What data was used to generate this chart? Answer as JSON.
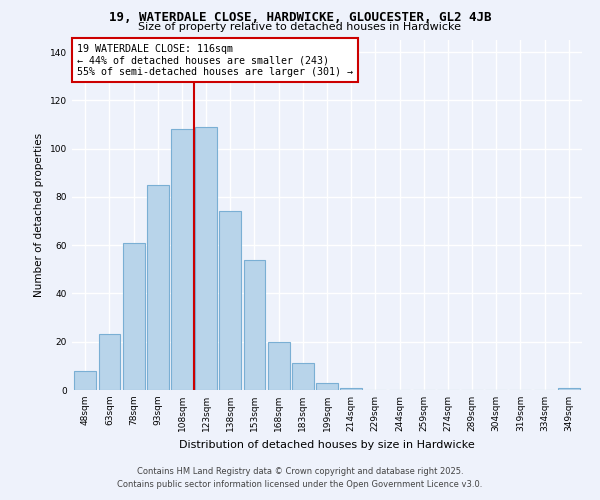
{
  "title": "19, WATERDALE CLOSE, HARDWICKE, GLOUCESTER, GL2 4JB",
  "subtitle": "Size of property relative to detached houses in Hardwicke",
  "xlabel": "Distribution of detached houses by size in Hardwicke",
  "ylabel": "Number of detached properties",
  "categories": [
    "48sqm",
    "63sqm",
    "78sqm",
    "93sqm",
    "108sqm",
    "123sqm",
    "138sqm",
    "153sqm",
    "168sqm",
    "183sqm",
    "199sqm",
    "214sqm",
    "229sqm",
    "244sqm",
    "259sqm",
    "274sqm",
    "289sqm",
    "304sqm",
    "319sqm",
    "334sqm",
    "349sqm"
  ],
  "values": [
    8,
    23,
    61,
    85,
    108,
    109,
    74,
    54,
    20,
    11,
    3,
    1,
    0,
    0,
    0,
    0,
    0,
    0,
    0,
    0,
    1
  ],
  "bar_color": "#b8d4ea",
  "bar_edge_color": "#7aafd4",
  "vline_x_index": 4.5,
  "vline_color": "#cc0000",
  "annotation_lines": [
    "19 WATERDALE CLOSE: 116sqm",
    "← 44% of detached houses are smaller (243)",
    "55% of semi-detached houses are larger (301) →"
  ],
  "ylim": [
    0,
    145
  ],
  "yticks": [
    0,
    20,
    40,
    60,
    80,
    100,
    120,
    140
  ],
  "background_color": "#eef2fb",
  "grid_color": "#ffffff",
  "footer_line1": "Contains HM Land Registry data © Crown copyright and database right 2025.",
  "footer_line2": "Contains public sector information licensed under the Open Government Licence v3.0."
}
